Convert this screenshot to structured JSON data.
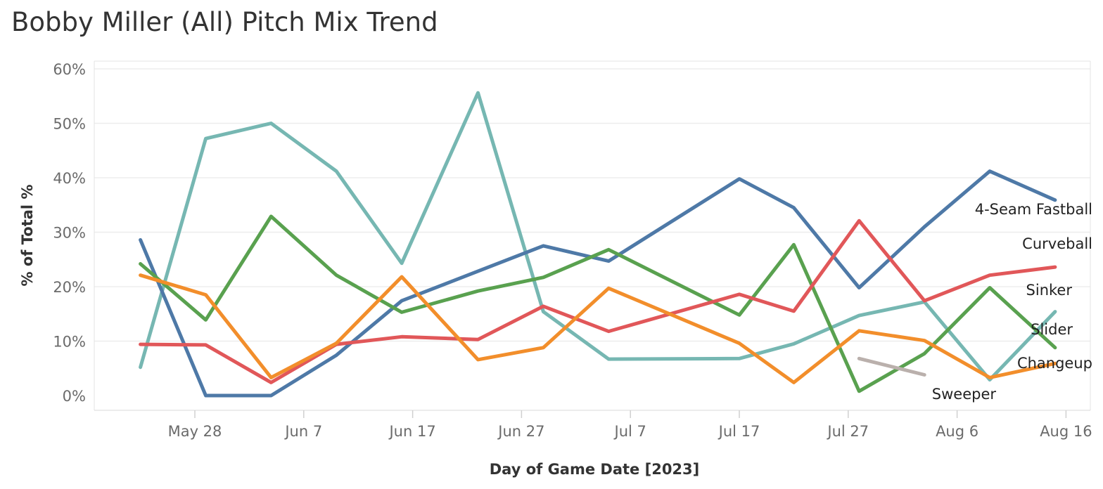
{
  "chart_data": {
    "type": "line",
    "title": "Bobby Miller (All) Pitch Mix Trend",
    "xlabel": "Day of Game Date [2023]",
    "ylabel": "% of Total %",
    "ylim": [
      0,
      60
    ],
    "xlim": [
      "2023-05-20",
      "2023-08-18"
    ],
    "x_ticks": [
      {
        "date": "2023-05-28",
        "label": "May 28"
      },
      {
        "date": "2023-06-07",
        "label": "Jun 7"
      },
      {
        "date": "2023-06-17",
        "label": "Jun 17"
      },
      {
        "date": "2023-06-27",
        "label": "Jun 27"
      },
      {
        "date": "2023-07-07",
        "label": "Jul 7"
      },
      {
        "date": "2023-07-17",
        "label": "Jul 17"
      },
      {
        "date": "2023-07-27",
        "label": "Jul 27"
      },
      {
        "date": "2023-08-06",
        "label": "Aug 6"
      },
      {
        "date": "2023-08-16",
        "label": "Aug 16"
      }
    ],
    "y_ticks": [
      0,
      10,
      20,
      30,
      40,
      50,
      60
    ],
    "y_tick_labels": [
      "0%",
      "10%",
      "20%",
      "30%",
      "40%",
      "50%",
      "60%"
    ],
    "grid": true,
    "legend": "inline labels at line ends",
    "series": [
      {
        "name": "Sinker",
        "color": "#76b7b2",
        "points": [
          {
            "x": "2023-05-23",
            "y": 5.2
          },
          {
            "x": "2023-05-29",
            "y": 47.2
          },
          {
            "x": "2023-06-04",
            "y": 50.0
          },
          {
            "x": "2023-06-10",
            "y": 41.2
          },
          {
            "x": "2023-06-16",
            "y": 24.3
          },
          {
            "x": "2023-06-23",
            "y": 55.6
          },
          {
            "x": "2023-06-29",
            "y": 15.4
          },
          {
            "x": "2023-07-05",
            "y": 6.7
          },
          {
            "x": "2023-07-17",
            "y": 6.8
          },
          {
            "x": "2023-07-22",
            "y": 9.5
          },
          {
            "x": "2023-07-28",
            "y": 14.7
          },
          {
            "x": "2023-08-03",
            "y": 17.2
          },
          {
            "x": "2023-08-09",
            "y": 2.9
          },
          {
            "x": "2023-08-15",
            "y": 15.4
          }
        ]
      },
      {
        "name": "4-Seam Fastball",
        "color": "#4e79a7",
        "points": [
          {
            "x": "2023-05-23",
            "y": 28.6
          },
          {
            "x": "2023-05-29",
            "y": 0.0
          },
          {
            "x": "2023-06-04",
            "y": 0.0
          },
          {
            "x": "2023-06-10",
            "y": 7.4
          },
          {
            "x": "2023-06-16",
            "y": 17.4
          },
          {
            "x": "2023-06-29",
            "y": 27.5
          },
          {
            "x": "2023-07-05",
            "y": 24.7
          },
          {
            "x": "2023-07-17",
            "y": 39.8
          },
          {
            "x": "2023-07-22",
            "y": 34.5
          },
          {
            "x": "2023-07-28",
            "y": 19.8
          },
          {
            "x": "2023-08-03",
            "y": 31.0
          },
          {
            "x": "2023-08-09",
            "y": 41.2
          },
          {
            "x": "2023-08-15",
            "y": 35.9
          }
        ]
      },
      {
        "name": "Slider",
        "color": "#59a14f",
        "points": [
          {
            "x": "2023-05-23",
            "y": 24.2
          },
          {
            "x": "2023-05-29",
            "y": 13.9
          },
          {
            "x": "2023-06-04",
            "y": 32.9
          },
          {
            "x": "2023-06-10",
            "y": 22.1
          },
          {
            "x": "2023-06-16",
            "y": 15.3
          },
          {
            "x": "2023-06-23",
            "y": 19.2
          },
          {
            "x": "2023-06-29",
            "y": 21.7
          },
          {
            "x": "2023-07-05",
            "y": 26.8
          },
          {
            "x": "2023-07-17",
            "y": 14.8
          },
          {
            "x": "2023-07-22",
            "y": 27.7
          },
          {
            "x": "2023-07-28",
            "y": 0.8
          },
          {
            "x": "2023-08-03",
            "y": 7.7
          },
          {
            "x": "2023-08-09",
            "y": 19.8
          },
          {
            "x": "2023-08-15",
            "y": 8.8
          }
        ]
      },
      {
        "name": "Curveball",
        "color": "#e15759",
        "points": [
          {
            "x": "2023-05-23",
            "y": 9.4
          },
          {
            "x": "2023-05-29",
            "y": 9.3
          },
          {
            "x": "2023-06-04",
            "y": 2.4
          },
          {
            "x": "2023-06-10",
            "y": 9.4
          },
          {
            "x": "2023-06-16",
            "y": 10.8
          },
          {
            "x": "2023-06-23",
            "y": 10.3
          },
          {
            "x": "2023-06-29",
            "y": 16.4
          },
          {
            "x": "2023-07-05",
            "y": 11.8
          },
          {
            "x": "2023-07-17",
            "y": 18.6
          },
          {
            "x": "2023-07-22",
            "y": 15.5
          },
          {
            "x": "2023-07-28",
            "y": 32.1
          },
          {
            "x": "2023-08-03",
            "y": 17.4
          },
          {
            "x": "2023-08-09",
            "y": 22.1
          },
          {
            "x": "2023-08-15",
            "y": 23.6
          }
        ]
      },
      {
        "name": "Changeup",
        "color": "#f28e2b",
        "points": [
          {
            "x": "2023-05-23",
            "y": 22.1
          },
          {
            "x": "2023-05-29",
            "y": 18.5
          },
          {
            "x": "2023-06-04",
            "y": 3.3
          },
          {
            "x": "2023-06-10",
            "y": 9.6
          },
          {
            "x": "2023-06-16",
            "y": 21.8
          },
          {
            "x": "2023-06-23",
            "y": 6.6
          },
          {
            "x": "2023-06-29",
            "y": 8.8
          },
          {
            "x": "2023-07-05",
            "y": 19.7
          },
          {
            "x": "2023-07-17",
            "y": 9.6
          },
          {
            "x": "2023-07-22",
            "y": 2.4
          },
          {
            "x": "2023-07-28",
            "y": 11.9
          },
          {
            "x": "2023-08-03",
            "y": 10.1
          },
          {
            "x": "2023-08-09",
            "y": 3.3
          },
          {
            "x": "2023-08-15",
            "y": 5.9
          }
        ]
      },
      {
        "name": "Sweeper",
        "color": "#bab0ac",
        "points": [
          {
            "x": "2023-07-28",
            "y": 6.8
          },
          {
            "x": "2023-08-03",
            "y": 3.8
          }
        ]
      }
    ]
  }
}
